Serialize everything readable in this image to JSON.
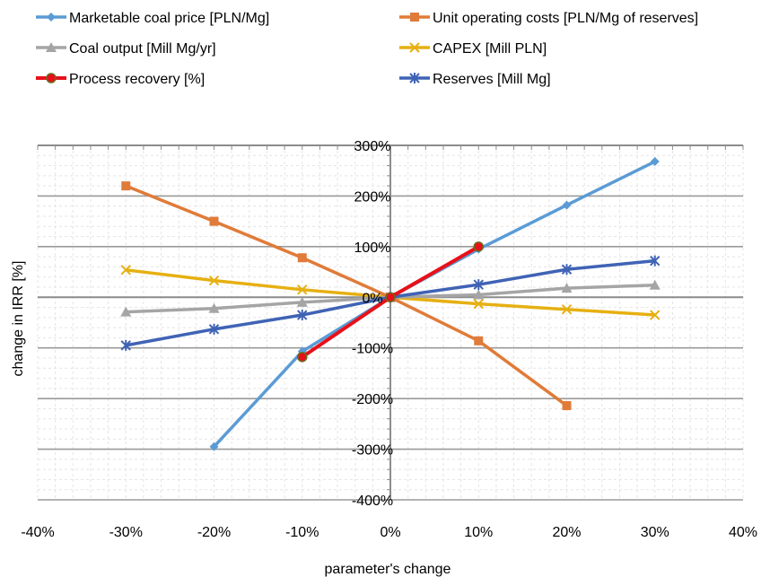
{
  "chart_data": {
    "type": "line",
    "xlabel": "parameter's change",
    "ylabel": "change in IRR [%]",
    "xlim": [
      -0.4,
      0.4
    ],
    "ylim": [
      -4,
      3
    ],
    "x_ticks": [
      "-40%",
      "-30%",
      "-20%",
      "-10%",
      "0%",
      "10%",
      "20%",
      "30%",
      "40%"
    ],
    "y_ticks": [
      "300%",
      "200%",
      "100%",
      "0%",
      "-100%",
      "-200%",
      "-300%",
      "-400%"
    ],
    "grid": true,
    "legend_position": "top",
    "series": [
      {
        "name": "Marketable coal price [PLN/Mg]",
        "color": "#5B9BD5",
        "marker": "diamond",
        "x": [
          -0.2,
          -0.1,
          0,
          0.1,
          0.2,
          0.3
        ],
        "y": [
          -2.95,
          -1.07,
          0,
          0.95,
          1.82,
          2.68
        ]
      },
      {
        "name": "Unit operating costs [PLN/Mg of reserves]",
        "color": "#E07B39",
        "marker": "square",
        "x": [
          -0.3,
          -0.2,
          -0.1,
          0,
          0.1,
          0.2
        ],
        "y": [
          2.2,
          1.5,
          0.78,
          0,
          -0.86,
          -2.14
        ]
      },
      {
        "name": "Coal output [Mill Mg/yr]",
        "color": "#A5A5A5",
        "marker": "triangle",
        "x": [
          -0.3,
          -0.2,
          -0.1,
          0,
          0.1,
          0.2,
          0.3
        ],
        "y": [
          -0.29,
          -0.22,
          -0.1,
          0,
          0.05,
          0.18,
          0.24
        ]
      },
      {
        "name": "CAPEX [Mill PLN]",
        "color": "#E6B012",
        "marker": "x",
        "x": [
          -0.3,
          -0.2,
          -0.1,
          0,
          0.1,
          0.2,
          0.3
        ],
        "y": [
          0.54,
          0.33,
          0.15,
          0,
          -0.13,
          -0.24,
          -0.35
        ]
      },
      {
        "name": "Process recovery [%]",
        "color": "#E8101A",
        "marker": "circle",
        "x": [
          -0.1,
          0,
          0.1
        ],
        "y": [
          -1.18,
          0,
          1.0
        ]
      },
      {
        "name": "Reserves [Mill Mg]",
        "color": "#3F63B5",
        "marker": "star",
        "x": [
          -0.3,
          -0.2,
          -0.1,
          0,
          0.1,
          0.2,
          0.3
        ],
        "y": [
          -0.95,
          -0.63,
          -0.35,
          0,
          0.25,
          0.55,
          0.72
        ]
      }
    ]
  }
}
